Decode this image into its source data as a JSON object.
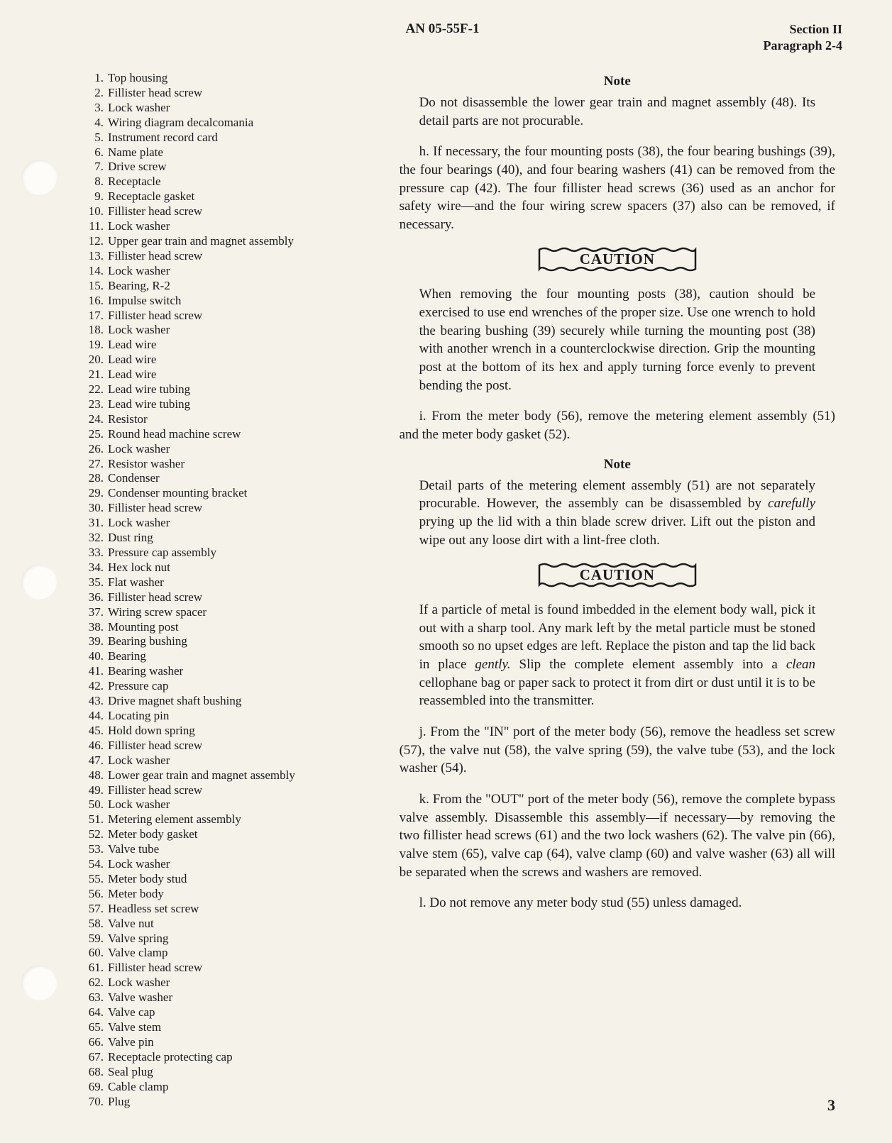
{
  "header": {
    "center": "AN 05-55F-1",
    "section": "Section II",
    "paragraph": "Paragraph 2-4"
  },
  "parts": [
    {
      "n": "1",
      "label": "Top housing"
    },
    {
      "n": "2",
      "label": "Fillister head screw"
    },
    {
      "n": "3",
      "label": "Lock washer"
    },
    {
      "n": "4",
      "label": "Wiring diagram decalcomania"
    },
    {
      "n": "5",
      "label": "Instrument record card"
    },
    {
      "n": "6",
      "label": "Name plate"
    },
    {
      "n": "7",
      "label": "Drive screw"
    },
    {
      "n": "8",
      "label": "Receptacle"
    },
    {
      "n": "9",
      "label": "Receptacle gasket"
    },
    {
      "n": "10",
      "label": "Fillister head screw"
    },
    {
      "n": "11",
      "label": "Lock washer"
    },
    {
      "n": "12",
      "label": "Upper gear train and magnet assembly"
    },
    {
      "n": "13",
      "label": "Fillister head screw"
    },
    {
      "n": "14",
      "label": "Lock washer"
    },
    {
      "n": "15",
      "label": "Bearing, R-2"
    },
    {
      "n": "16",
      "label": "Impulse switch"
    },
    {
      "n": "17",
      "label": "Fillister head screw"
    },
    {
      "n": "18",
      "label": "Lock washer"
    },
    {
      "n": "19",
      "label": "Lead wire"
    },
    {
      "n": "20",
      "label": "Lead wire"
    },
    {
      "n": "21",
      "label": "Lead wire"
    },
    {
      "n": "22",
      "label": "Lead wire tubing"
    },
    {
      "n": "23",
      "label": "Lead wire tubing"
    },
    {
      "n": "24",
      "label": "Resistor"
    },
    {
      "n": "25",
      "label": "Round head machine screw"
    },
    {
      "n": "26",
      "label": "Lock washer"
    },
    {
      "n": "27",
      "label": "Resistor washer"
    },
    {
      "n": "28",
      "label": "Condenser"
    },
    {
      "n": "29",
      "label": "Condenser mounting bracket"
    },
    {
      "n": "30",
      "label": "Fillister head screw"
    },
    {
      "n": "31",
      "label": "Lock washer"
    },
    {
      "n": "32",
      "label": "Dust ring"
    },
    {
      "n": "33",
      "label": "Pressure cap assembly"
    },
    {
      "n": "34",
      "label": "Hex lock nut"
    },
    {
      "n": "35",
      "label": "Flat washer"
    },
    {
      "n": "36",
      "label": "Fillister head screw"
    },
    {
      "n": "37",
      "label": "Wiring screw spacer"
    },
    {
      "n": "38",
      "label": "Mounting post"
    },
    {
      "n": "39",
      "label": "Bearing bushing"
    },
    {
      "n": "40",
      "label": "Bearing"
    },
    {
      "n": "41",
      "label": "Bearing washer"
    },
    {
      "n": "42",
      "label": "Pressure cap"
    },
    {
      "n": "43",
      "label": "Drive magnet shaft bushing"
    },
    {
      "n": "44",
      "label": "Locating pin"
    },
    {
      "n": "45",
      "label": "Hold down spring"
    },
    {
      "n": "46",
      "label": "Fillister head screw"
    },
    {
      "n": "47",
      "label": "Lock washer"
    },
    {
      "n": "48",
      "label": "Lower gear train and magnet assembly"
    },
    {
      "n": "49",
      "label": "Fillister head screw"
    },
    {
      "n": "50",
      "label": "Lock washer"
    },
    {
      "n": "51",
      "label": "Metering element assembly"
    },
    {
      "n": "52",
      "label": "Meter body gasket"
    },
    {
      "n": "53",
      "label": "Valve tube"
    },
    {
      "n": "54",
      "label": "Lock washer"
    },
    {
      "n": "55",
      "label": "Meter body stud"
    },
    {
      "n": "56",
      "label": "Meter body"
    },
    {
      "n": "57",
      "label": "Headless set screw"
    },
    {
      "n": "58",
      "label": "Valve nut"
    },
    {
      "n": "59",
      "label": "Valve spring"
    },
    {
      "n": "60",
      "label": "Valve clamp"
    },
    {
      "n": "61",
      "label": "Fillister head screw"
    },
    {
      "n": "62",
      "label": "Lock washer"
    },
    {
      "n": "63",
      "label": "Valve washer"
    },
    {
      "n": "64",
      "label": "Valve cap"
    },
    {
      "n": "65",
      "label": "Valve stem"
    },
    {
      "n": "66",
      "label": "Valve pin"
    },
    {
      "n": "67",
      "label": "Receptacle protecting cap"
    },
    {
      "n": "68",
      "label": "Seal plug"
    },
    {
      "n": "69",
      "label": "Cable clamp"
    },
    {
      "n": "70",
      "label": "Plug"
    }
  ],
  "note1_header": "Note",
  "note1_text": "Do not disassemble the lower gear train and magnet assembly (48). Its detail parts are not procurable.",
  "para_h": "h. If necessary, the four mounting posts (38), the four bearing bushings (39), the four bearings (40), and four bearing washers (41) can be removed from the pressure cap (42). The four fillister head screws (36) used as an anchor for safety wire—and the four wiring screw spacers (37) also can be removed, if necessary.",
  "caution_label": "CAUTION",
  "caution1_text": "When removing the four mounting posts (38), caution should be exercised to use end wrenches of the proper size. Use one wrench to hold the bearing bushing (39) securely while turning the mounting post (38) with another wrench in a counterclockwise direction. Grip the mounting post at the bottom of its hex and apply turning force evenly to prevent bending the post.",
  "para_i": "i. From the meter body (56), remove the metering element assembly (51) and the meter body gasket (52).",
  "note2_header": "Note",
  "note2_text_pre": "Detail parts of the metering element assembly (51) are not separately procurable. However, the assembly can be disassembled by ",
  "note2_italic": "carefully",
  "note2_text_post": " prying up the lid with a thin blade screw driver. Lift out the piston and wipe out any loose dirt with a lint-free cloth.",
  "caution2_pre": "If a particle of metal is found imbedded in the element body wall, pick it out with a sharp tool. Any mark left by the metal particle must be stoned smooth so no upset edges are left. Replace the piston and tap the lid back in place ",
  "caution2_italic1": "gently.",
  "caution2_mid": " Slip the complete element assembly into a ",
  "caution2_italic2": "clean",
  "caution2_post": " cellophane bag or paper sack to protect it from dirt or dust until it is to be reassembled into the transmitter.",
  "para_j": "j. From the \"IN\" port of the meter body (56), remove the headless set screw (57), the valve nut (58), the valve spring (59), the valve tube (53), and the lock washer (54).",
  "para_k": "k. From the \"OUT\" port of the meter body (56), remove the complete bypass valve assembly. Disassemble this assembly—if necessary—by removing the two fillister head screws (61) and the two lock washers (62). The valve pin (66), valve stem (65), valve cap (64), valve clamp (60) and valve washer (63) all will be separated when the screws and washers are removed.",
  "para_l": "l. Do not remove any meter body stud (55) unless damaged.",
  "page_number": "3"
}
